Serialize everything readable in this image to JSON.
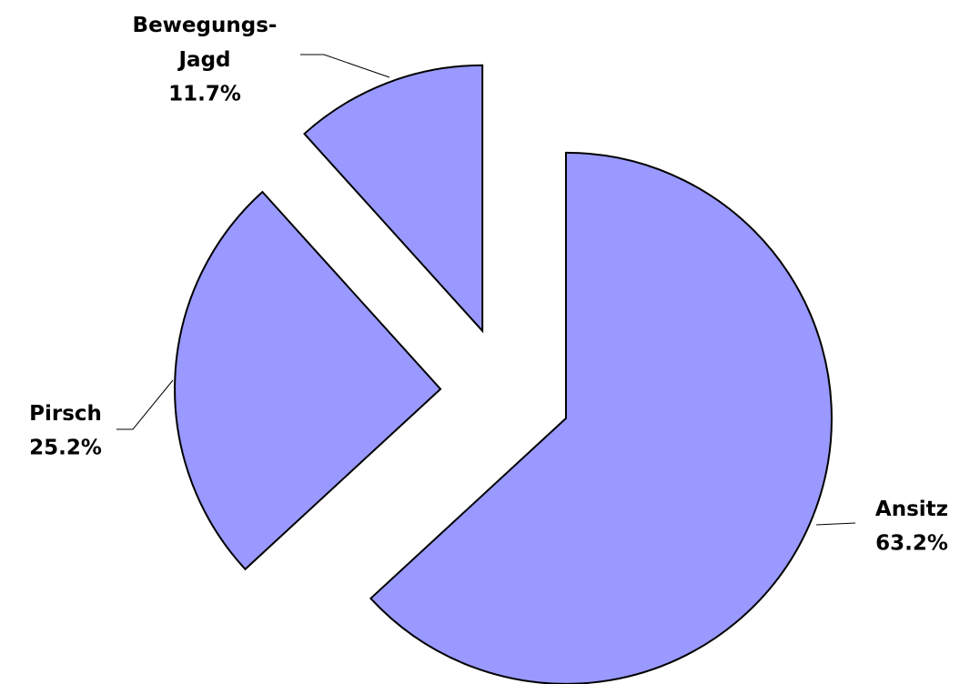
{
  "chart_data": {
    "type": "pie",
    "categories": [
      "Ansitz",
      "Pirsch",
      "Bewegungs-Jagd"
    ],
    "values": [
      63.2,
      25.2,
      11.7
    ],
    "value_labels": [
      "63.2%",
      "25.2%",
      "11.7%"
    ],
    "color": "#9999ff"
  }
}
